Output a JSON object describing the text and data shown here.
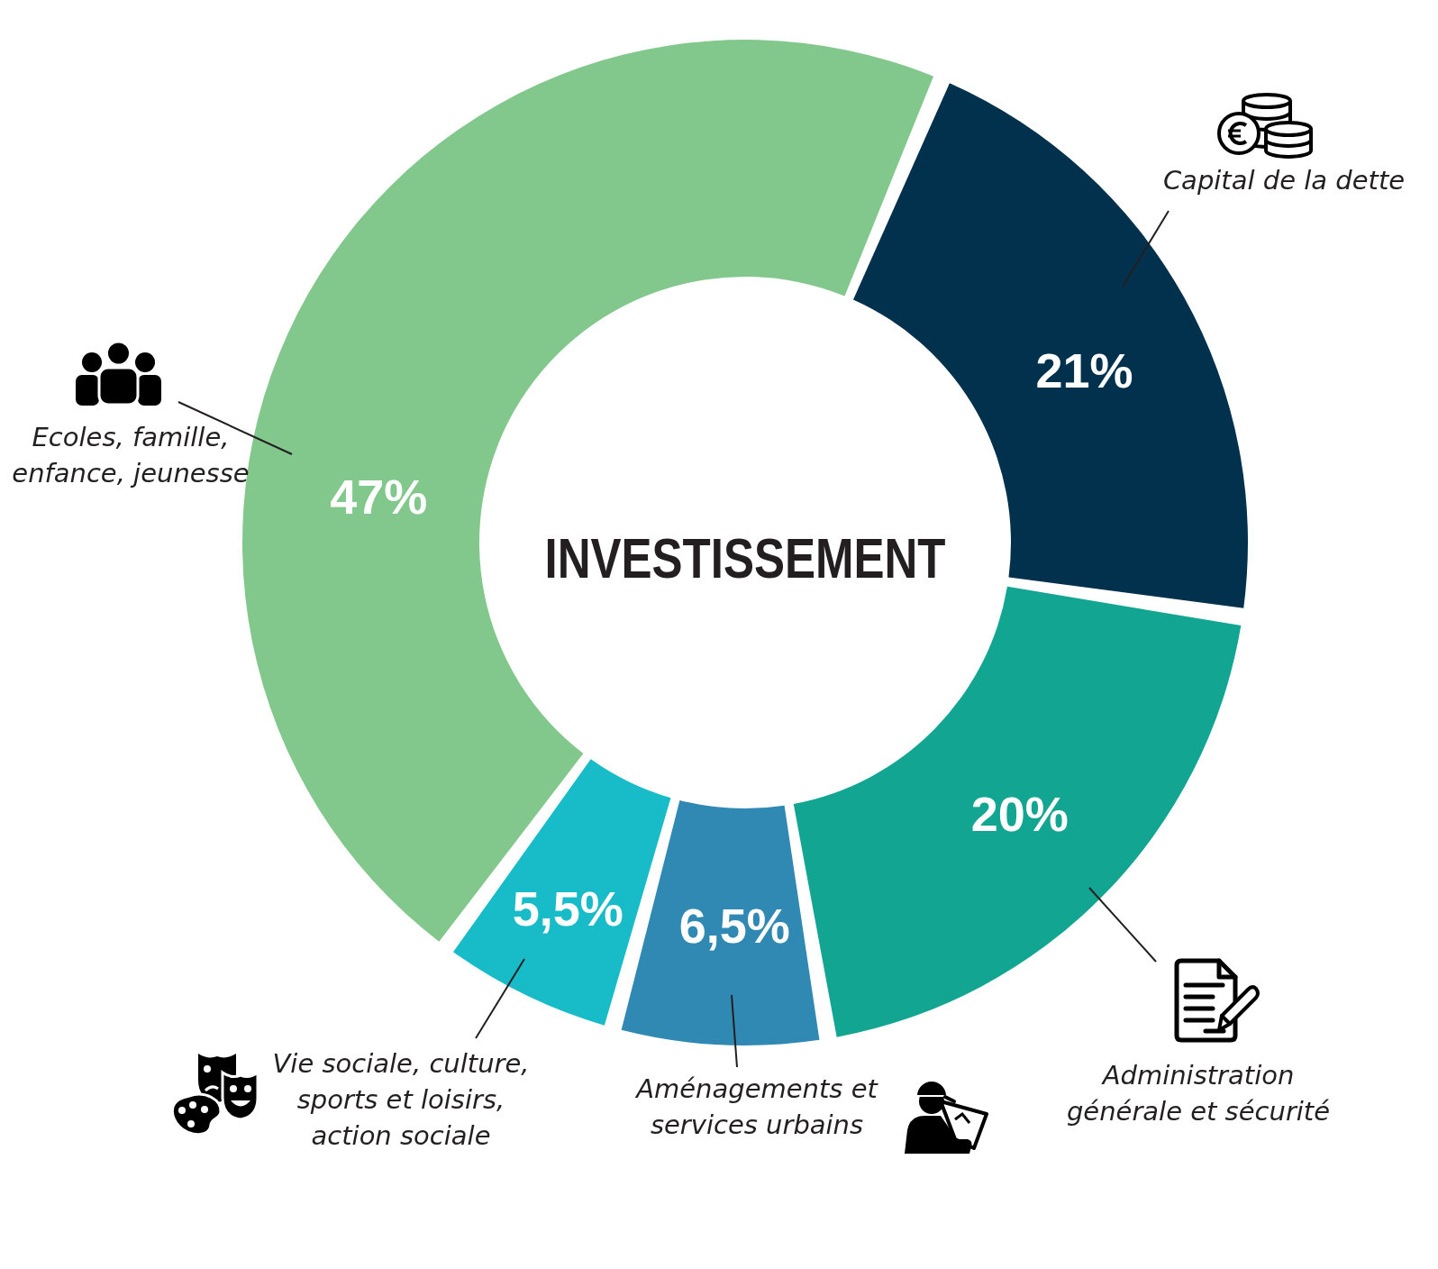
{
  "chart_data": {
    "type": "donut",
    "title": "INVESTISSEMENT",
    "categories": [
      "Capital de la dette",
      "Administration générale et sécurité",
      "Aménagements et services urbains",
      "Vie sociale, culture, sports et loisirs, action sociale",
      "Ecoles, famille, enfance, jeunesse"
    ],
    "values": [
      21,
      20,
      6.5,
      5.5,
      47
    ],
    "value_labels": [
      "21%",
      "20%",
      "6,5%",
      "5,5%",
      "47%"
    ],
    "colors": [
      "#02314d",
      "#12a591",
      "#3089b3",
      "#17bcc8",
      "#82c88c"
    ]
  }
}
